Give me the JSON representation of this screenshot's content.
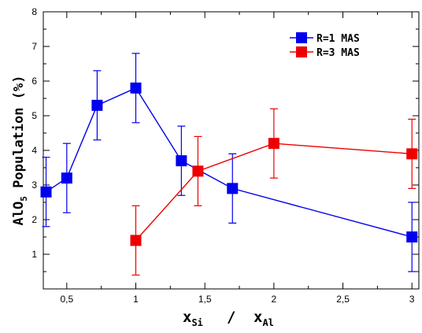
{
  "chart_data": {
    "type": "line",
    "title": "",
    "xlabel": {
      "main": "x",
      "sub1": "Si",
      "slash": "/",
      "main2": "x",
      "sub2": "Al"
    },
    "ylabel": {
      "prefix": "AlO",
      "sub": "5",
      "suffix": " Population (%)"
    },
    "xlim": [
      0.33,
      3.05
    ],
    "ylim": [
      0,
      8
    ],
    "x_ticks": [
      {
        "value": 0.5,
        "label": "0,5"
      },
      {
        "value": 1,
        "label": "1"
      },
      {
        "value": 1.5,
        "label": "1,5"
      },
      {
        "value": 2,
        "label": "2"
      },
      {
        "value": 2.5,
        "label": "2,5"
      },
      {
        "value": 3,
        "label": "3"
      }
    ],
    "y_ticks": [
      {
        "value": 1,
        "label": "1"
      },
      {
        "value": 2,
        "label": "2"
      },
      {
        "value": 3,
        "label": "3"
      },
      {
        "value": 4,
        "label": "4"
      },
      {
        "value": 5,
        "label": "5"
      },
      {
        "value": 6,
        "label": "6"
      },
      {
        "value": 7,
        "label": "7"
      },
      {
        "value": 8,
        "label": "8"
      }
    ],
    "grid": false,
    "legend_position": "top-right",
    "series": [
      {
        "name": "R=1 MAS",
        "color": "#0000ee",
        "points": [
          {
            "x": 0.35,
            "y": 2.8,
            "err": 1.0
          },
          {
            "x": 0.5,
            "y": 3.2,
            "err": 1.0
          },
          {
            "x": 0.72,
            "y": 5.3,
            "err": 1.0
          },
          {
            "x": 1.0,
            "y": 5.8,
            "err": 1.0
          },
          {
            "x": 1.33,
            "y": 3.7,
            "err": 1.0
          },
          {
            "x": 1.7,
            "y": 2.9,
            "err": 1.0
          },
          {
            "x": 3.0,
            "y": 1.5,
            "err": 1.0
          }
        ]
      },
      {
        "name": "R=3 MAS",
        "color": "#ee0000",
        "points": [
          {
            "x": 1.0,
            "y": 1.4,
            "err": 1.0
          },
          {
            "x": 1.45,
            "y": 3.4,
            "err": 1.0
          },
          {
            "x": 2.0,
            "y": 4.2,
            "err": 1.0
          },
          {
            "x": 3.0,
            "y": 3.9,
            "err": 1.0
          }
        ]
      }
    ]
  }
}
